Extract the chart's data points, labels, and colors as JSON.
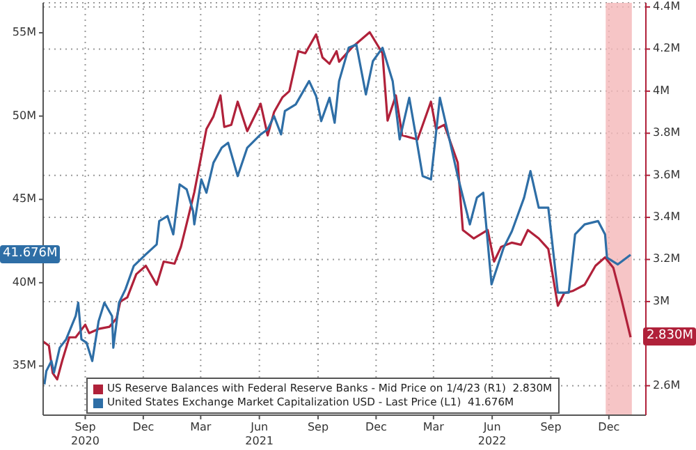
{
  "chart_data": {
    "type": "line",
    "series": [
      {
        "name": "US Reserve Balances with Federal Reserve Banks - Mid Price on 1/4/23 (R1)  2.830M",
        "color": "#b0213a",
        "axis": "y2",
        "x": [
          "2020-06-27",
          "2020-07-06",
          "2020-07-12",
          "2020-07-19",
          "2020-07-27",
          "2020-08-07",
          "2020-08-17",
          "2020-09-01",
          "2020-09-07",
          "2020-09-22",
          "2020-10-09",
          "2020-10-20",
          "2020-10-26",
          "2020-11-06",
          "2020-11-20",
          "2020-12-05",
          "2020-12-22",
          "2021-01-02",
          "2021-01-19",
          "2021-01-29",
          "2021-02-07",
          "2021-02-19",
          "2021-03-10",
          "2021-03-21",
          "2021-04-01",
          "2021-04-07",
          "2021-04-18",
          "2021-04-28",
          "2021-05-13",
          "2021-06-03",
          "2021-06-14",
          "2021-06-24",
          "2021-07-07",
          "2021-07-18",
          "2021-08-01",
          "2021-08-12",
          "2021-08-29",
          "2021-09-08",
          "2021-09-19",
          "2021-09-30",
          "2021-10-04",
          "2021-10-25",
          "2021-11-21",
          "2021-12-11",
          "2021-12-19",
          "2022-01-01",
          "2022-01-11",
          "2022-02-04",
          "2022-02-25",
          "2022-03-05",
          "2022-03-18",
          "2022-04-08",
          "2022-04-16",
          "2022-05-03",
          "2022-05-25",
          "2022-06-04",
          "2022-06-15",
          "2022-07-02",
          "2022-07-16",
          "2022-07-27",
          "2022-08-13",
          "2022-08-28",
          "2022-09-12",
          "2022-09-22",
          "2022-10-05",
          "2022-10-24",
          "2022-11-10",
          "2022-11-25",
          "2022-12-08",
          "2022-12-20",
          "2023-01-04"
        ],
        "values": [
          2.81,
          2.79,
          2.66,
          2.63,
          2.72,
          2.83,
          2.83,
          2.89,
          2.85,
          2.87,
          2.88,
          2.92,
          3.0,
          3.02,
          3.13,
          3.17,
          3.08,
          3.19,
          3.18,
          3.26,
          3.37,
          3.52,
          3.82,
          3.88,
          3.98,
          3.83,
          3.84,
          3.95,
          3.81,
          3.94,
          3.79,
          3.9,
          3.97,
          4.0,
          4.19,
          4.18,
          4.27,
          4.16,
          4.13,
          4.19,
          4.14,
          4.21,
          4.28,
          4.18,
          3.86,
          3.98,
          3.79,
          3.77,
          3.95,
          3.82,
          3.84,
          3.66,
          3.34,
          3.3,
          3.34,
          3.19,
          3.26,
          3.28,
          3.27,
          3.34,
          3.3,
          3.25,
          2.98,
          3.04,
          3.05,
          3.08,
          3.17,
          3.21,
          3.16,
          3.02,
          2.83
        ]
      },
      {
        "name": "United States Exchange Market Capitalization USD - Last Price (L1)  41.676M",
        "color": "#2e6ea6",
        "x": [
          "2020-06-29",
          "2020-07-02",
          "2020-07-10",
          "2020-07-14",
          "2020-07-23",
          "2020-08-02",
          "2020-08-17",
          "2020-08-21",
          "2020-08-26",
          "2020-09-03",
          "2020-09-12",
          "2020-09-22",
          "2020-10-01",
          "2020-10-13",
          "2020-10-15",
          "2020-10-24",
          "2020-11-03",
          "2020-11-16",
          "2020-12-05",
          "2020-12-22",
          "2020-12-26",
          "2021-01-08",
          "2021-01-17",
          "2021-01-27",
          "2021-02-07",
          "2021-02-17",
          "2021-02-19",
          "2021-03-02",
          "2021-03-10",
          "2021-03-21",
          "2021-04-03",
          "2021-04-13",
          "2021-04-28",
          "2021-05-13",
          "2021-06-03",
          "2021-06-14",
          "2021-06-24",
          "2021-07-05",
          "2021-07-11",
          "2021-07-28",
          "2021-08-18",
          "2021-08-29",
          "2021-09-06",
          "2021-09-19",
          "2021-09-27",
          "2021-10-04",
          "2021-10-19",
          "2021-10-31",
          "2021-11-15",
          "2021-11-26",
          "2021-12-11",
          "2021-12-27",
          "2022-01-07",
          "2022-01-22",
          "2022-02-01",
          "2022-02-12",
          "2022-02-25",
          "2022-03-11",
          "2022-03-26",
          "2022-04-08",
          "2022-04-27",
          "2022-05-08",
          "2022-05-18",
          "2022-05-31",
          "2022-06-19",
          "2022-07-02",
          "2022-07-21",
          "2022-07-31",
          "2022-08-13",
          "2022-08-28",
          "2022-09-12",
          "2022-09-29",
          "2022-10-09",
          "2022-10-24",
          "2022-11-14",
          "2022-11-25",
          "2022-11-28",
          "2022-12-15",
          "2023-01-04"
        ],
        "values": [
          33.9,
          34.7,
          35.3,
          34.6,
          36.1,
          36.6,
          38.0,
          38.8,
          36.6,
          36.4,
          35.3,
          37.7,
          38.8,
          38.0,
          36.1,
          38.8,
          39.6,
          41.0,
          41.7,
          42.3,
          43.7,
          44.0,
          42.9,
          45.9,
          45.6,
          44.3,
          43.5,
          46.2,
          45.4,
          47.2,
          48.1,
          48.4,
          46.4,
          48.1,
          48.9,
          49.2,
          50.0,
          48.9,
          50.3,
          50.7,
          52.1,
          51.2,
          49.7,
          51.1,
          49.6,
          52.1,
          54.1,
          54.3,
          51.3,
          53.3,
          54.1,
          52.1,
          48.6,
          51.1,
          48.9,
          46.4,
          46.2,
          51.1,
          48.6,
          46.4,
          43.5,
          45.1,
          45.4,
          39.9,
          42.1,
          43.1,
          45.1,
          46.7,
          44.5,
          44.5,
          39.4,
          39.4,
          42.9,
          43.5,
          43.7,
          42.9,
          41.5,
          41.1,
          41.676
        ]
      }
    ],
    "xlim": [
      "2020-06-27",
      "2023-01-28"
    ],
    "xticks": [
      {
        "value": "2020-09-01",
        "label": "Sep\n2020"
      },
      {
        "value": "2020-12-01",
        "label": "Dec"
      },
      {
        "value": "2021-03-01",
        "label": "Mar"
      },
      {
        "value": "2021-06-01",
        "label": "Jun\n2021"
      },
      {
        "value": "2021-09-01",
        "label": "Sep"
      },
      {
        "value": "2021-12-01",
        "label": "Dec"
      },
      {
        "value": "2022-03-01",
        "label": "Mar"
      },
      {
        "value": "2022-06-01",
        "label": "Jun\n2022"
      },
      {
        "value": "2022-09-01",
        "label": "Sep"
      },
      {
        "value": "2022-12-01",
        "label": "Dec"
      }
    ],
    "ylim": [
      32.05,
      56.8
    ],
    "yticks": [
      {
        "value": 35,
        "label": "35M"
      },
      {
        "value": 40,
        "label": "40M"
      },
      {
        "value": 45,
        "label": "45M"
      },
      {
        "value": 50,
        "label": "50M"
      },
      {
        "value": 55,
        "label": "55M"
      }
    ],
    "y2lim": [
      2.46,
      4.42
    ],
    "y2ticks": [
      {
        "value": 2.6,
        "label": "2.6M"
      },
      {
        "value": 2.8,
        "label": null
      },
      {
        "value": 3.0,
        "label": "3M"
      },
      {
        "value": 3.2,
        "label": "3.2M"
      },
      {
        "value": 3.4,
        "label": "3.4M"
      },
      {
        "value": 3.6,
        "label": "3.6M"
      },
      {
        "value": 3.8,
        "label": "3.8M"
      },
      {
        "value": 4.0,
        "label": "4M"
      },
      {
        "value": 4.2,
        "label": "4.2M"
      },
      {
        "value": 4.4,
        "label": "4.4M"
      }
    ],
    "bands": [
      {
        "axis": "x",
        "from": "2022-11-26",
        "to": "2023-01-06",
        "color": "#f4b6b8"
      }
    ],
    "annotations": [
      "2.830M",
      "41.676M"
    ],
    "grid": true,
    "legend": "bottom left",
    "marker": "none",
    "line_style": "solid"
  }
}
